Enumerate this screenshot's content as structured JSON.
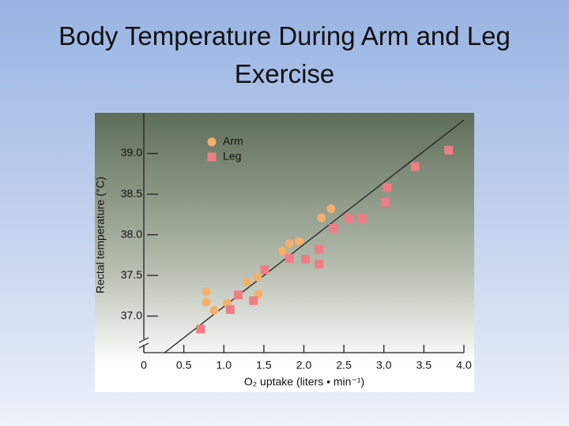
{
  "title": "Body Temperature During Arm and Leg Exercise",
  "chart_data": {
    "type": "scatter",
    "x_label": "O₂ uptake (liters • min⁻¹)",
    "y_label": "Rectal temperature (°C)",
    "xlim": [
      0,
      4.0
    ],
    "ylim": [
      36.55,
      39.5
    ],
    "xticks": [
      0,
      0.5,
      {
        "value": 1,
        "label": "1.0"
      },
      1.5,
      {
        "value": 2,
        "label": "2.0"
      },
      2.5,
      {
        "value": 3,
        "label": "3.0"
      },
      3.5,
      {
        "value": 4,
        "label": "4.0"
      }
    ],
    "yticks": [
      {
        "value": 37,
        "label": "37.0"
      },
      37.5,
      {
        "value": 38,
        "label": "38.0"
      },
      38.5,
      {
        "value": 39,
        "label": "39.0"
      }
    ],
    "series": [
      {
        "name": "Arm",
        "color": "#f5b06b",
        "marker": "circle",
        "x": [
          0.78,
          0.78,
          0.88,
          1.04,
          1.29,
          1.42,
          1.43,
          1.73,
          1.82,
          1.94,
          2.22,
          2.34
        ],
        "values": [
          37.3,
          37.17,
          37.07,
          37.16,
          37.42,
          37.48,
          37.27,
          37.8,
          37.89,
          37.92,
          38.21,
          38.32
        ]
      },
      {
        "name": "Leg",
        "color": "#f07c86",
        "marker": "square",
        "x": [
          0.71,
          1.08,
          1.18,
          1.37,
          1.51,
          1.82,
          2.02,
          2.19,
          2.19,
          2.37,
          2.56,
          2.73,
          3.02,
          3.04,
          3.39,
          3.81
        ],
        "values": [
          36.84,
          37.08,
          37.26,
          37.19,
          37.57,
          37.71,
          37.7,
          37.82,
          37.64,
          38.08,
          38.2,
          38.2,
          38.4,
          38.58,
          38.84,
          39.04
        ]
      }
    ],
    "fit_line": {
      "x": [
        0.26,
        4.0
      ],
      "values": [
        36.55,
        39.41
      ]
    }
  }
}
